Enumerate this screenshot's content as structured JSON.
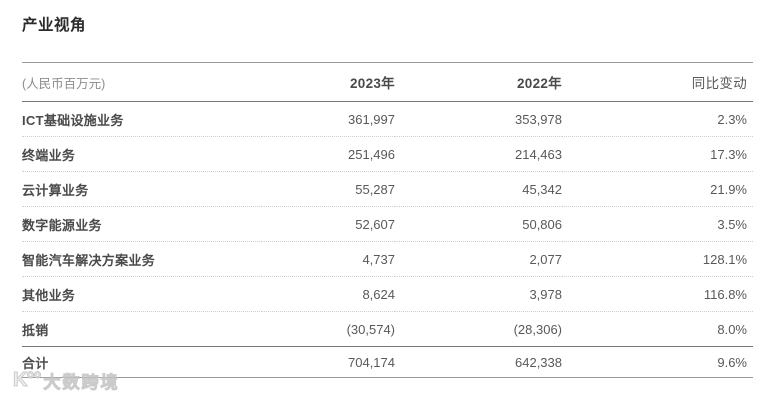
{
  "page": {
    "title": "产业视角"
  },
  "table": {
    "unit_label": "(人民币百万元)",
    "columns": [
      "2023年",
      "2022年",
      "同比变动"
    ],
    "rows": [
      {
        "label": "ICT基础设施业务",
        "y2023": "361,997",
        "y2022": "353,978",
        "yoy": "2.3%"
      },
      {
        "label": "终端业务",
        "y2023": "251,496",
        "y2022": "214,463",
        "yoy": "17.3%"
      },
      {
        "label": "云计算业务",
        "y2023": "55,287",
        "y2022": "45,342",
        "yoy": "21.9%"
      },
      {
        "label": "数字能源业务",
        "y2023": "52,607",
        "y2022": "50,806",
        "yoy": "3.5%"
      },
      {
        "label": "智能汽车解决方案业务",
        "y2023": "4,737",
        "y2022": "2,077",
        "yoy": "128.1%"
      },
      {
        "label": "其他业务",
        "y2023": "8,624",
        "y2022": "3,978",
        "yoy": "116.8%"
      },
      {
        "label": "抵销",
        "y2023": "(30,574)",
        "y2022": "(28,306)",
        "yoy": "8.0%"
      }
    ],
    "total": {
      "label": "合计",
      "y2023": "704,174",
      "y2022": "642,338",
      "yoy": "9.6%"
    }
  },
  "watermark": {
    "logo": "K°°",
    "text": "大数跨境"
  },
  "colors": {
    "title_text": "#2b2b2b",
    "label_text": "#4a4a4a",
    "value_text": "#595959",
    "muted_text": "#8c8c8c",
    "rule_dark": "#767676",
    "rule_light": "#9a9a9a",
    "row_separator": "#cfcfcf",
    "watermark": "#c3c3c3",
    "background": "#ffffff"
  }
}
